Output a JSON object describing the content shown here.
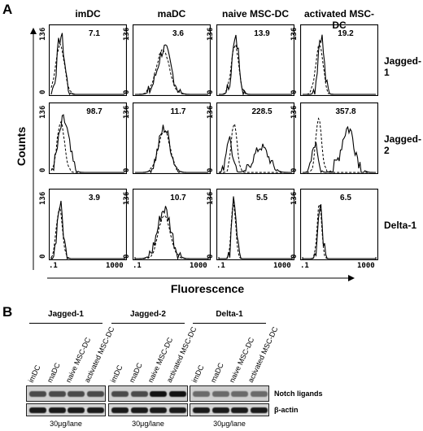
{
  "figure": {
    "panel_a_letter": "A",
    "panel_b_letter": "B",
    "ylabel": "Counts",
    "xlabel": "Fluorescence"
  },
  "chart_data": {
    "type": "histogram-grid",
    "columns": [
      "imDC",
      "maDC",
      "naive MSC-DC",
      "activated MSC-DC"
    ],
    "rows": [
      "Jagged-1",
      "Jagged-2",
      "Delta-1"
    ],
    "y_tick_labels": [
      "136",
      "0"
    ],
    "x_tick_labels": [
      ".1",
      "1000"
    ],
    "values": [
      [
        "7.1",
        "3.6",
        "13.9",
        "19.2"
      ],
      [
        "98.7",
        "11.7",
        "228.5",
        "357.8"
      ],
      [
        "3.9",
        "10.7",
        "5.5",
        "6.5"
      ]
    ]
  },
  "western_blot": {
    "groups": [
      "Jagged-1",
      "Jagged-2",
      "Delta-1"
    ],
    "lanes": [
      "imDC",
      "maDC",
      "naive MSC-DC",
      "activated MSC-DC"
    ],
    "band_labels": [
      "Notch ligands",
      "β-actin"
    ],
    "loading": [
      "30μg/lane",
      "30μg/lane",
      "30μg/lane"
    ]
  }
}
